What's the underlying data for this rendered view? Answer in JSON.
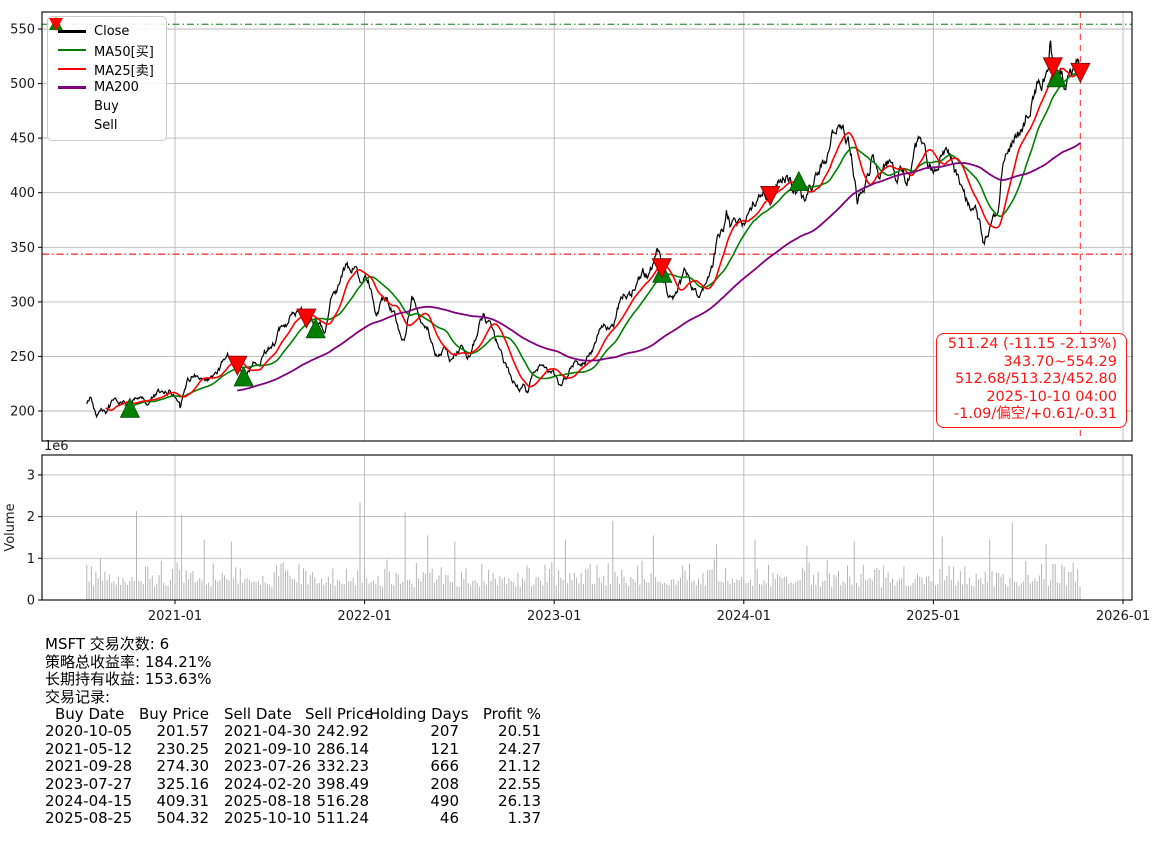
{
  "colors": {
    "close": "#000000",
    "ma50": "#008000",
    "ma25": "#ff0000",
    "ma200": "#800080",
    "buy_marker": "#008000",
    "sell_marker": "#ff0000",
    "grid": "#b8b8b8",
    "spine": "#000000",
    "volume_bar": "#b5b5b5",
    "hline_high": "#2e8b2e",
    "hline_low": "#ff1414",
    "vline": "#ff3333",
    "annotation": "#ff1414",
    "tick_label": "#1a1a1a"
  },
  "legend": {
    "items": [
      {
        "label": "Close",
        "swatch": "line",
        "color": "#000000"
      },
      {
        "label": "MA50[买]",
        "swatch": "line",
        "color": "#008000"
      },
      {
        "label": "MA25[卖]",
        "swatch": "line",
        "color": "#ff0000"
      },
      {
        "label": "MA200",
        "swatch": "line",
        "color": "#800080"
      },
      {
        "label": "Buy",
        "swatch": "triangle-up",
        "color": "#008000"
      },
      {
        "label": "Sell",
        "swatch": "triangle-down",
        "color": "#ff0000"
      }
    ]
  },
  "annotation": {
    "lines": [
      "511.24 (-11.15 -2.13%)",
      "343.70~554.29",
      "512.68/513.23/452.80",
      "2025-10-10 04:00",
      "-1.09/偏空/+0.61/-0.31"
    ]
  },
  "report": {
    "lines": [
      "MSFT 交易次数: 6",
      "策略总收益率: 184.21%",
      "长期持有收益: 153.63%",
      "交易记录:"
    ],
    "table": {
      "headers": [
        "Buy Date",
        "Buy Price",
        "Sell Date",
        "Sell Price",
        "Holding Days",
        "Profit %"
      ],
      "rows": [
        [
          "2020-10-05",
          "201.57",
          "2021-04-30",
          "242.92",
          "207",
          "20.51"
        ],
        [
          "2021-05-12",
          "230.25",
          "2021-09-10",
          "286.14",
          "121",
          "24.27"
        ],
        [
          "2021-09-28",
          "274.30",
          "2023-07-26",
          "332.23",
          "666",
          "21.12"
        ],
        [
          "2023-07-27",
          "325.16",
          "2024-02-20",
          "398.49",
          "208",
          "22.55"
        ],
        [
          "2024-04-15",
          "409.31",
          "2025-08-18",
          "516.28",
          "490",
          "26.13"
        ],
        [
          "2025-08-25",
          "504.32",
          "2025-10-10",
          "511.24",
          "46",
          "1.37"
        ]
      ]
    }
  },
  "chart_data": [
    {
      "type": "line",
      "title": "",
      "xlabel": "",
      "ylabel": "",
      "xlim": [
        2020.2985,
        2026.048
      ],
      "ylim": [
        172.5,
        565.6
      ],
      "y_ticks": [
        200,
        250,
        300,
        350,
        400,
        450,
        500,
        550
      ],
      "x_ticks": [
        {
          "t": 2021,
          "label": "2021-01"
        },
        {
          "t": 2022,
          "label": "2022-01"
        },
        {
          "t": 2023,
          "label": "2023-01"
        },
        {
          "t": 2024,
          "label": "2024-01"
        },
        {
          "t": 2025,
          "label": "2025-01"
        },
        {
          "t": 2026,
          "label": "2026-01"
        }
      ],
      "grid": true,
      "legend_position": "upper-left",
      "hlines": [
        {
          "y": 554.29,
          "color": "#2e8b2e",
          "style": "dashdot",
          "label": "52w-high"
        },
        {
          "y": 343.7,
          "color": "#ff1414",
          "style": "dashdot",
          "label": "52w-low"
        }
      ],
      "vlines": [
        {
          "t": 2025.7755,
          "color": "#ff3333",
          "style": "dashed",
          "label": "last-date"
        }
      ],
      "series": [
        {
          "name": "Close",
          "color": "#000000",
          "anchors": [
            [
              2020.535,
              206
            ],
            [
              2020.555,
              213
            ],
            [
              2020.585,
              196
            ],
            [
              2020.61,
              206
            ],
            [
              2020.645,
              201
            ],
            [
              2020.675,
              211
            ],
            [
              2020.705,
              202
            ],
            [
              2020.735,
              208
            ],
            [
              2020.762,
              201.6
            ],
            [
              2020.79,
              210
            ],
            [
              2020.82,
              215
            ],
            [
              2020.85,
              207
            ],
            [
              2020.88,
              213
            ],
            [
              2020.915,
              216
            ],
            [
              2020.945,
              212
            ],
            [
              2020.975,
              218
            ],
            [
              2021.005,
              213
            ],
            [
              2021.03,
              207
            ],
            [
              2021.065,
              227
            ],
            [
              2021.1,
              232
            ],
            [
              2021.13,
              226
            ],
            [
              2021.16,
              221
            ],
            [
              2021.195,
              226
            ],
            [
              2021.23,
              237
            ],
            [
              2021.265,
              247
            ],
            [
              2021.3,
              251
            ],
            [
              2021.329,
              242.9
            ],
            [
              2021.347,
              238
            ],
            [
              2021.362,
              230.3
            ],
            [
              2021.39,
              241
            ],
            [
              2021.43,
              244
            ],
            [
              2021.47,
              254
            ],
            [
              2021.51,
              262
            ],
            [
              2021.55,
              271
            ],
            [
              2021.59,
              278
            ],
            [
              2021.63,
              287
            ],
            [
              2021.66,
              295
            ],
            [
              2021.693,
              286.1
            ],
            [
              2021.715,
              290
            ],
            [
              2021.742,
              274.3
            ],
            [
              2021.765,
              282
            ],
            [
              2021.79,
              276
            ],
            [
              2021.82,
              299
            ],
            [
              2021.85,
              310
            ],
            [
              2021.88,
              324
            ],
            [
              2021.905,
              331
            ],
            [
              2021.93,
              322
            ],
            [
              2021.955,
              333
            ],
            [
              2021.975,
              317
            ],
            [
              2022.0,
              329
            ],
            [
              2022.03,
              319
            ],
            [
              2022.06,
              297
            ],
            [
              2022.09,
              301
            ],
            [
              2022.12,
              307
            ],
            [
              2022.155,
              288
            ],
            [
              2022.185,
              272
            ],
            [
              2022.21,
              268
            ],
            [
              2022.235,
              292
            ],
            [
              2022.25,
              304
            ],
            [
              2022.275,
              296
            ],
            [
              2022.305,
              280
            ],
            [
              2022.335,
              272
            ],
            [
              2022.365,
              254
            ],
            [
              2022.395,
              252
            ],
            [
              2022.42,
              261
            ],
            [
              2022.45,
              243
            ],
            [
              2022.48,
              251
            ],
            [
              2022.51,
              258
            ],
            [
              2022.54,
              250
            ],
            [
              2022.57,
              261
            ],
            [
              2022.6,
              277
            ],
            [
              2022.625,
              287
            ],
            [
              2022.655,
              277
            ],
            [
              2022.685,
              265
            ],
            [
              2022.71,
              255
            ],
            [
              2022.735,
              244
            ],
            [
              2022.76,
              234
            ],
            [
              2022.79,
              227
            ],
            [
              2022.815,
              220
            ],
            [
              2022.84,
              229
            ],
            [
              2022.862,
              218
            ],
            [
              2022.885,
              233
            ],
            [
              2022.91,
              242
            ],
            [
              2022.935,
              247
            ],
            [
              2022.96,
              237
            ],
            [
              2022.985,
              235
            ],
            [
              2023.01,
              229
            ],
            [
              2023.025,
              219
            ],
            [
              2023.055,
              229
            ],
            [
              2023.085,
              243
            ],
            [
              2023.115,
              252
            ],
            [
              2023.14,
              246
            ],
            [
              2023.165,
              244
            ],
            [
              2023.195,
              251
            ],
            [
              2023.225,
              266
            ],
            [
              2023.255,
              277
            ],
            [
              2023.285,
              274
            ],
            [
              2023.315,
              282
            ],
            [
              2023.345,
              300
            ],
            [
              2023.375,
              307
            ],
            [
              2023.405,
              304
            ],
            [
              2023.435,
              319
            ],
            [
              2023.465,
              331
            ],
            [
              2023.49,
              326
            ],
            [
              2023.52,
              336
            ],
            [
              2023.545,
              349
            ],
            [
              2023.558,
              341
            ],
            [
              2023.567,
              332.2
            ],
            [
              2023.578,
              325.2
            ],
            [
              2023.6,
              313
            ],
            [
              2023.63,
              307
            ],
            [
              2023.66,
              318
            ],
            [
              2023.69,
              326
            ],
            [
              2023.72,
              317
            ],
            [
              2023.75,
              311
            ],
            [
              2023.78,
              307
            ],
            [
              2023.805,
              317
            ],
            [
              2023.835,
              329
            ],
            [
              2023.862,
              356
            ],
            [
              2023.885,
              365
            ],
            [
              2023.91,
              371
            ],
            [
              2023.935,
              366
            ],
            [
              2023.96,
              369
            ],
            [
              2023.985,
              373
            ],
            [
              2024.01,
              367
            ],
            [
              2024.045,
              386
            ],
            [
              2024.075,
              399
            ],
            [
              2024.105,
              405
            ],
            [
              2024.139,
              398.5
            ],
            [
              2024.165,
              403
            ],
            [
              2024.195,
              413
            ],
            [
              2024.225,
              418
            ],
            [
              2024.255,
              411
            ],
            [
              2024.28,
              399
            ],
            [
              2024.29,
              409.3
            ],
            [
              2024.315,
              394
            ],
            [
              2024.345,
              407
            ],
            [
              2024.375,
              415
            ],
            [
              2024.405,
              424
            ],
            [
              2024.435,
              419
            ],
            [
              2024.465,
              444
            ],
            [
              2024.495,
              451
            ],
            [
              2024.525,
              462
            ],
            [
              2024.55,
              452
            ],
            [
              2024.578,
              427
            ],
            [
              2024.6,
              399
            ],
            [
              2024.625,
              409
            ],
            [
              2024.655,
              416
            ],
            [
              2024.685,
              425
            ],
            [
              2024.71,
              407
            ],
            [
              2024.74,
              416
            ],
            [
              2024.77,
              426
            ],
            [
              2024.8,
              409
            ],
            [
              2024.83,
              421
            ],
            [
              2024.858,
              414
            ],
            [
              2024.885,
              427
            ],
            [
              2024.915,
              438
            ],
            [
              2024.945,
              444
            ],
            [
              2024.97,
              429
            ],
            [
              2025.0,
              420
            ],
            [
              2025.025,
              429
            ],
            [
              2025.055,
              441
            ],
            [
              2025.085,
              437
            ],
            [
              2025.11,
              419
            ],
            [
              2025.14,
              407
            ],
            [
              2025.17,
              392
            ],
            [
              2025.2,
              389
            ],
            [
              2025.23,
              379
            ],
            [
              2025.262,
              354
            ],
            [
              2025.29,
              369
            ],
            [
              2025.32,
              374
            ],
            [
              2025.345,
              391
            ],
            [
              2025.375,
              426
            ],
            [
              2025.405,
              437
            ],
            [
              2025.435,
              451
            ],
            [
              2025.465,
              461
            ],
            [
              2025.495,
              473
            ],
            [
              2025.525,
              493
            ],
            [
              2025.555,
              499
            ],
            [
              2025.585,
              506
            ],
            [
              2025.605,
              513
            ],
            [
              2025.617,
              534
            ],
            [
              2025.63,
              516.3
            ],
            [
              2025.649,
              504.3
            ],
            [
              2025.67,
              508
            ],
            [
              2025.695,
              497
            ],
            [
              2025.72,
              510
            ],
            [
              2025.745,
              512
            ],
            [
              2025.762,
              518
            ],
            [
              2025.7755,
              511.24
            ]
          ]
        },
        {
          "name": "MA50[买]",
          "color": "#008000",
          "derived": "sma",
          "window": 50
        },
        {
          "name": "MA25[卖]",
          "color": "#ff0000",
          "derived": "sma",
          "window": 25
        },
        {
          "name": "MA200",
          "color": "#800080",
          "derived": "sma",
          "window": 200
        }
      ],
      "markers": {
        "buy": [
          [
            2020.762,
            201.57
          ],
          [
            2021.362,
            230.25
          ],
          [
            2021.742,
            274.3
          ],
          [
            2023.57,
            325.16
          ],
          [
            2024.29,
            409.31
          ],
          [
            2025.649,
            504.32
          ]
        ],
        "sell": [
          [
            2021.329,
            242.92
          ],
          [
            2021.693,
            286.14
          ],
          [
            2023.567,
            332.23
          ],
          [
            2024.139,
            398.49
          ],
          [
            2025.63,
            516.28
          ],
          [
            2025.7755,
            511.24
          ]
        ]
      }
    },
    {
      "type": "bar",
      "title": "",
      "xlabel": "",
      "ylabel": "Volume",
      "offset_label": "1e6",
      "ylim": [
        0,
        3.477
      ],
      "y_ticks": [
        0,
        1,
        2,
        3
      ],
      "grid": true,
      "base_range": [
        0.3,
        1.1
      ],
      "spikes": [
        [
          2020.8,
          2.13
        ],
        [
          2021.04,
          2.05
        ],
        [
          2021.15,
          1.45
        ],
        [
          2021.3,
          1.4
        ],
        [
          2021.97,
          2.35
        ],
        [
          2022.21,
          2.1
        ],
        [
          2022.33,
          1.55
        ],
        [
          2022.47,
          1.4
        ],
        [
          2023.06,
          1.45
        ],
        [
          2023.31,
          1.9
        ],
        [
          2023.52,
          1.55
        ],
        [
          2023.86,
          1.35
        ],
        [
          2024.06,
          1.45
        ],
        [
          2024.33,
          1.3
        ],
        [
          2024.58,
          1.4
        ],
        [
          2025.05,
          1.52
        ],
        [
          2025.3,
          1.45
        ],
        [
          2025.42,
          1.85
        ],
        [
          2025.6,
          1.35
        ]
      ]
    }
  ]
}
